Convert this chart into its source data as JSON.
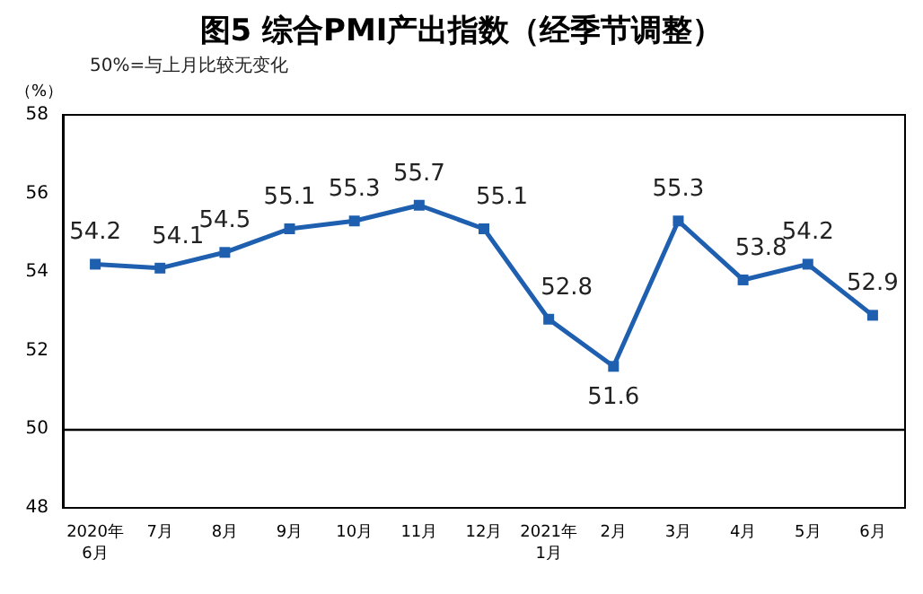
{
  "chart_data": {
    "type": "line",
    "title": "图5 综合PMI产出指数（经季节调整）",
    "ylabel": "（%）",
    "annotations": [
      "50%=与上月比较无变化"
    ],
    "categories": [
      "2020年\n6月",
      "7月",
      "8月",
      "9月",
      "10月",
      "11月",
      "12月",
      "2021年\n1月",
      "2月",
      "3月",
      "4月",
      "5月",
      "6月"
    ],
    "series": [
      {
        "color": "#1f5fb0",
        "values": [
          54.2,
          54.1,
          54.5,
          55.1,
          55.3,
          55.7,
          55.1,
          52.8,
          51.6,
          55.3,
          53.8,
          54.2,
          52.9
        ],
        "value_labels": [
          "54.2",
          "54.1",
          "54.5",
          "55.1",
          "55.3",
          "55.7",
          "55.1",
          "52.8",
          "51.6",
          "55.3",
          "53.8",
          "54.2",
          "52.9"
        ]
      }
    ],
    "ylim": [
      48,
      58
    ],
    "yticks": [
      48,
      50,
      52,
      54,
      56,
      58
    ],
    "grid": false,
    "marker": "square",
    "line_style": "solid",
    "ref_lines": [
      {
        "axis": "y",
        "value": 50,
        "label": null,
        "color": "#000000"
      }
    ]
  }
}
